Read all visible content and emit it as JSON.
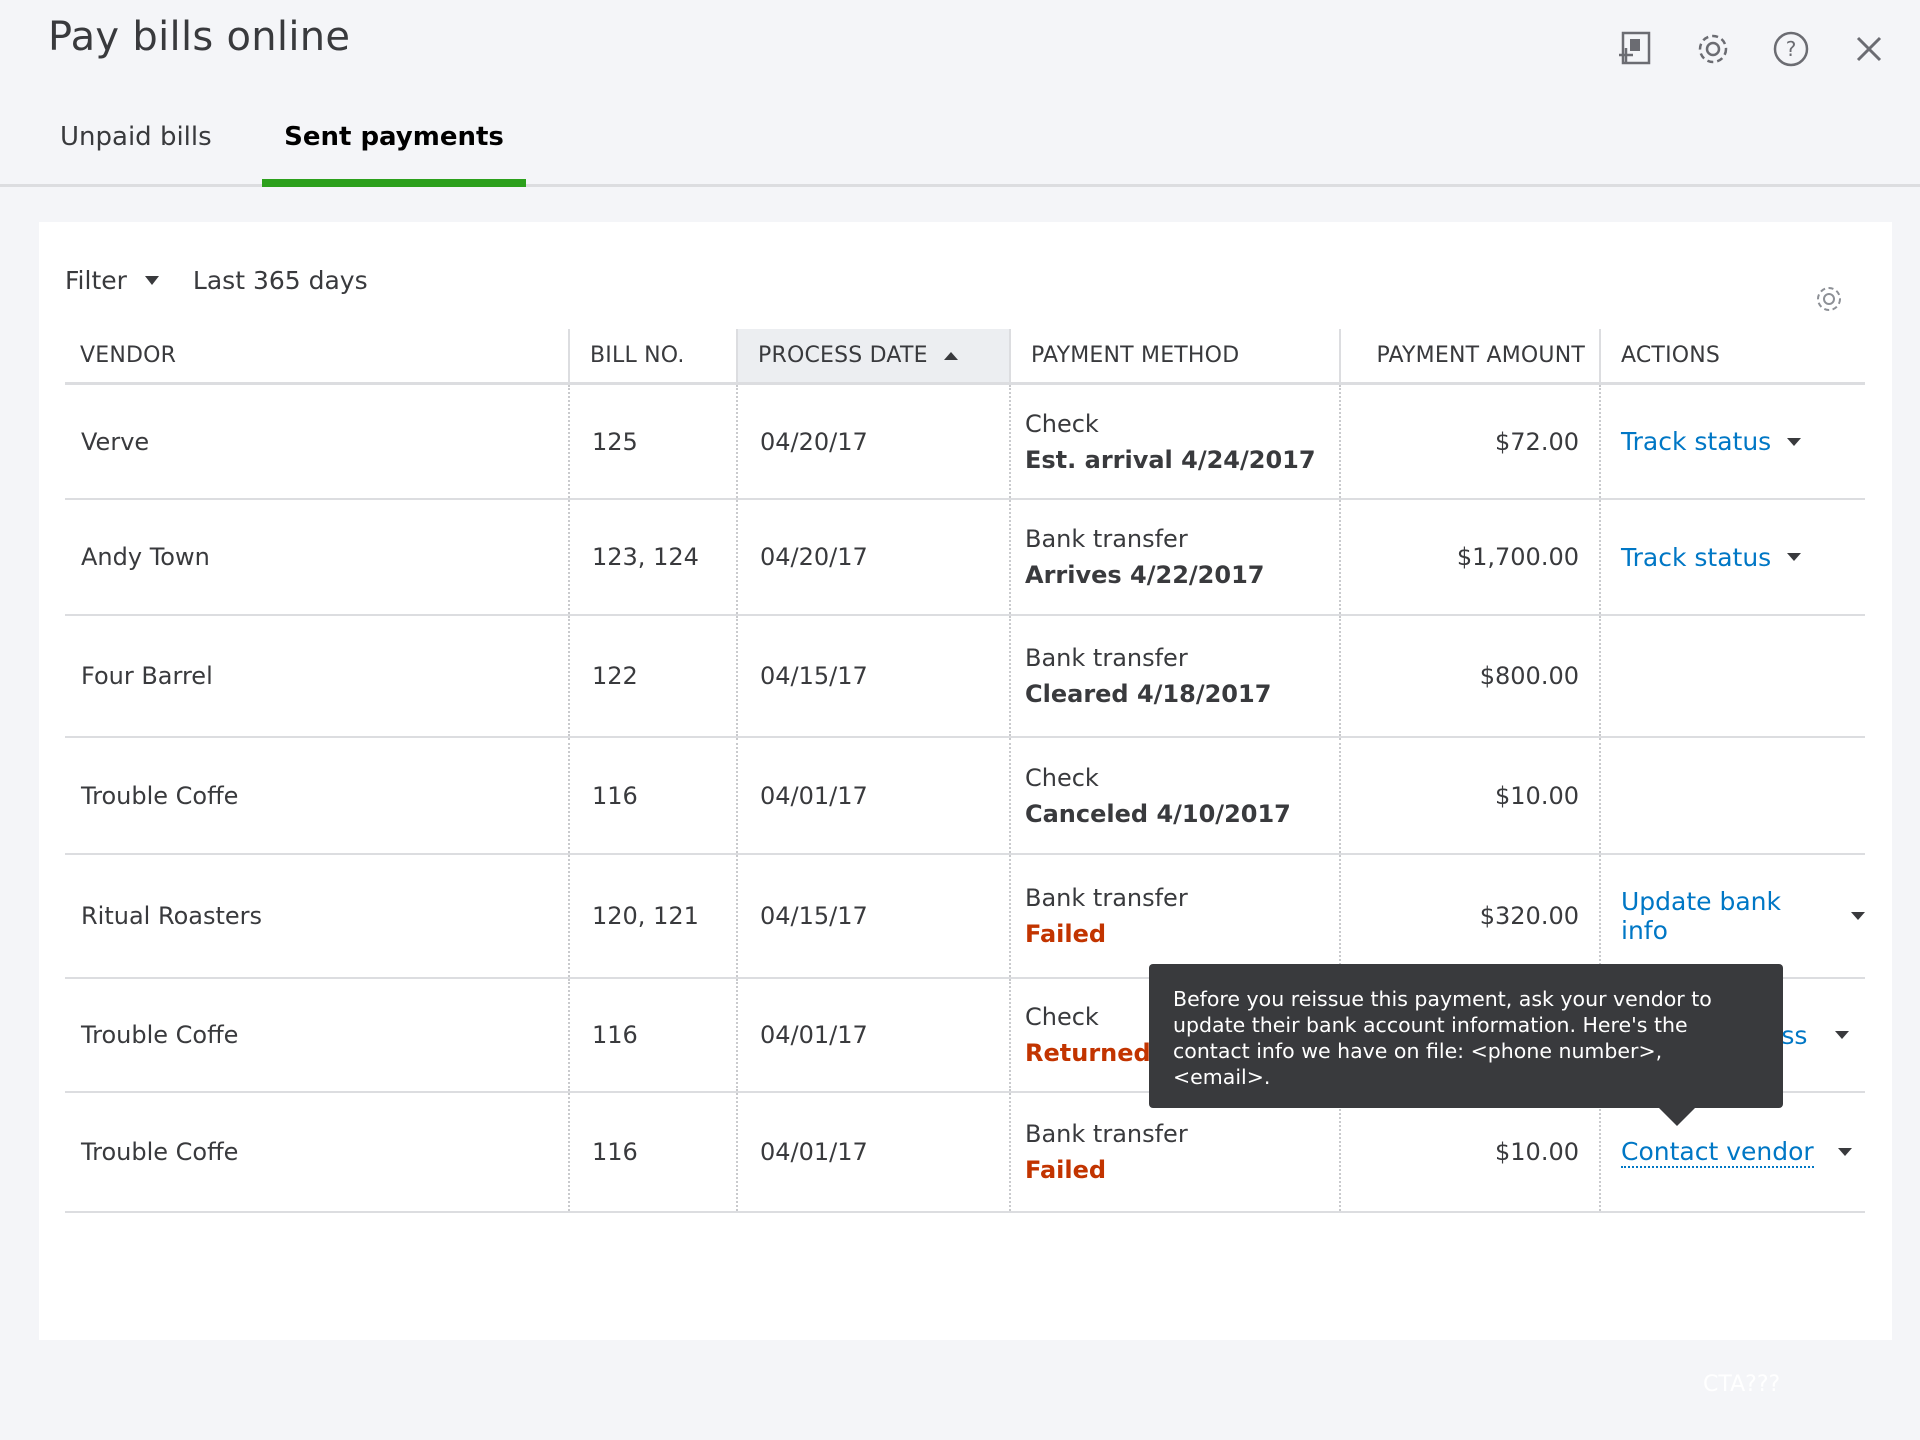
{
  "app": {
    "title": "Pay bills online"
  },
  "header_icons": [
    "export-icon",
    "gear-icon",
    "help-icon",
    "close-icon"
  ],
  "tabs": [
    {
      "label": "Unpaid bills",
      "active": false
    },
    {
      "label": "Sent payments",
      "active": true
    }
  ],
  "filter": {
    "label": "Filter",
    "value": "Last 365 days"
  },
  "table": {
    "columns": [
      "VENDOR",
      "BILL NO.",
      "PROCESS DATE",
      "PAYMENT METHOD",
      "PAYMENT AMOUNT",
      "ACTIONS"
    ],
    "sorted_column": "PROCESS DATE",
    "sort_direction": "ascending",
    "rows": [
      {
        "vendor": "Verve",
        "bill_no": "125",
        "process_date": "04/20/17",
        "method": "Check",
        "status": "Est. arrival 4/24/2017",
        "status_kind": "normal",
        "amount": "$72.00",
        "action": "Track status"
      },
      {
        "vendor": "Andy Town",
        "bill_no": "123, 124",
        "process_date": "04/20/17",
        "method": "Bank transfer",
        "status": "Arrives 4/22/2017",
        "status_kind": "normal",
        "amount": "$1,700.00",
        "action": "Track status"
      },
      {
        "vendor": "Four Barrel",
        "bill_no": "122",
        "process_date": "04/15/17",
        "method": "Bank transfer",
        "status": "Cleared 4/18/2017",
        "status_kind": "normal",
        "amount": "$800.00",
        "action": ""
      },
      {
        "vendor": "Trouble Coffe",
        "bill_no": "116",
        "process_date": "04/01/17",
        "method": "Check",
        "status": "Canceled 4/10/2017",
        "status_kind": "normal",
        "amount": "$10.00",
        "action": ""
      },
      {
        "vendor": "Ritual Roasters",
        "bill_no": "120, 121",
        "process_date": "04/15/17",
        "method": "Bank transfer",
        "status": "Failed",
        "status_kind": "error",
        "amount": "$320.00",
        "action": "Update bank info"
      },
      {
        "vendor": "Trouble Coffe",
        "bill_no": "116",
        "process_date": "04/01/17",
        "method": "Check",
        "status": "Returned",
        "status_kind": "error",
        "amount": "",
        "action": "ess"
      },
      {
        "vendor": "Trouble Coffe",
        "bill_no": "116",
        "process_date": "04/01/17",
        "method": "Bank transfer",
        "status": "Failed",
        "status_kind": "error",
        "amount": "$10.00",
        "action": "Contact vendor"
      }
    ]
  },
  "tooltip": {
    "text": "Before you reissue this payment, ask your vendor to update their bank account information. Here's the contact info we have on file: <phone number>, <email>."
  },
  "footer": {
    "cta": "CTA???"
  },
  "colors": {
    "accent_green": "#2ca01c",
    "link_blue": "#0077c5",
    "error_red": "#c23400",
    "tooltip_bg": "#393a3d"
  }
}
